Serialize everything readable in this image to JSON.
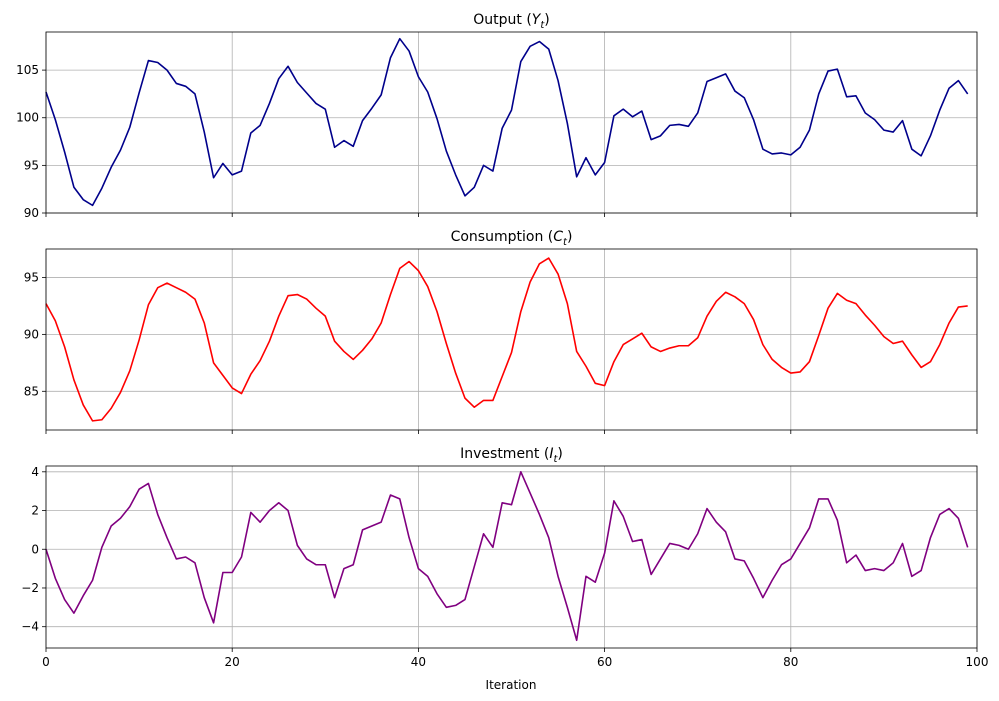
{
  "figure": {
    "xlabel": "Iteration"
  },
  "chart_data": [
    {
      "type": "line",
      "title_main": "Output (",
      "title_var": "Y",
      "title_sub": "t",
      "title_close": ")",
      "color": "#00008b",
      "xlim": [
        0,
        100
      ],
      "ylim": [
        90,
        109
      ],
      "yticks": [
        90,
        95,
        100,
        105
      ],
      "xticks": [
        0,
        20,
        40,
        60,
        80,
        100
      ],
      "show_xtick_labels": false,
      "grid": true,
      "x_start": 0,
      "values": [
        102.7,
        99.8,
        96.4,
        92.7,
        91.4,
        90.8,
        92.6,
        94.8,
        96.6,
        99.0,
        102.6,
        106.0,
        105.8,
        105.0,
        103.6,
        103.3,
        102.5,
        98.5,
        93.7,
        95.2,
        94.0,
        94.4,
        98.4,
        99.2,
        101.5,
        104.1,
        105.4,
        103.7,
        102.6,
        101.5,
        100.9,
        96.9,
        97.6,
        97.0,
        99.7,
        101.0,
        102.4,
        106.3,
        108.3,
        107.0,
        104.3,
        102.7,
        99.9,
        96.5,
        94.0,
        91.8,
        92.7,
        95.0,
        94.4,
        98.9,
        100.8,
        105.9,
        107.5,
        108.0,
        107.2,
        103.9,
        99.4,
        93.8,
        95.8,
        94.0,
        95.3,
        100.2,
        100.9,
        100.1,
        100.7,
        97.7,
        98.1,
        99.2,
        99.3,
        99.1,
        100.5,
        103.8,
        104.2,
        104.6,
        102.8,
        102.1,
        99.8,
        96.7,
        96.2,
        96.3,
        96.1,
        96.9,
        98.7,
        102.5,
        104.9,
        105.1,
        102.2,
        102.3,
        100.5,
        99.8,
        98.7,
        98.5,
        99.7,
        96.7,
        96.0,
        98.1,
        100.8,
        103.1,
        103.9,
        102.5
      ]
    },
    {
      "type": "line",
      "title_main": "Consumption (",
      "title_var": "C",
      "title_sub": "t",
      "title_close": ")",
      "color": "#ff0000",
      "xlim": [
        0,
        100
      ],
      "ylim": [
        81.6,
        97.5
      ],
      "yticks": [
        85,
        90,
        95
      ],
      "xticks": [
        0,
        20,
        40,
        60,
        80,
        100
      ],
      "show_xtick_labels": false,
      "grid": true,
      "x_start": 0,
      "values": [
        92.7,
        91.2,
        88.9,
        86.0,
        83.8,
        82.4,
        82.5,
        83.5,
        84.9,
        86.8,
        89.5,
        92.6,
        94.1,
        94.5,
        94.1,
        93.7,
        93.1,
        91.0,
        87.5,
        86.4,
        85.3,
        84.8,
        86.5,
        87.7,
        89.4,
        91.6,
        93.4,
        93.5,
        93.1,
        92.3,
        91.6,
        89.4,
        88.5,
        87.8,
        88.6,
        89.6,
        91.0,
        93.5,
        95.8,
        96.4,
        95.6,
        94.2,
        92.0,
        89.2,
        86.6,
        84.4,
        83.6,
        84.2,
        84.2,
        86.3,
        88.4,
        92.0,
        94.6,
        96.2,
        96.7,
        95.3,
        92.7,
        88.5,
        87.2,
        85.7,
        85.5,
        87.6,
        89.1,
        89.6,
        90.1,
        88.9,
        88.5,
        88.8,
        89.0,
        89.0,
        89.7,
        91.6,
        92.9,
        93.7,
        93.3,
        92.7,
        91.3,
        89.1,
        87.8,
        87.1,
        86.6,
        86.7,
        87.6,
        89.9,
        92.3,
        93.6,
        93.0,
        92.7,
        91.7,
        90.8,
        89.8,
        89.2,
        89.4,
        88.2,
        87.1,
        87.6,
        89.1,
        91.0,
        92.4,
        92.5
      ]
    },
    {
      "type": "line",
      "title_main": "Investment (",
      "title_var": "I",
      "title_sub": "t",
      "title_close": ")",
      "color": "#800080",
      "xlim": [
        0,
        100
      ],
      "ylim": [
        -5.1,
        4.3
      ],
      "yticks": [
        -4,
        -2,
        0,
        2,
        4
      ],
      "xticks": [
        0,
        20,
        40,
        60,
        80,
        100
      ],
      "show_xtick_labels": true,
      "grid": true,
      "x_start": 0,
      "values": [
        0.0,
        -1.5,
        -2.6,
        -3.3,
        -2.4,
        -1.6,
        0.1,
        1.2,
        1.6,
        2.2,
        3.1,
        3.4,
        1.8,
        0.6,
        -0.5,
        -0.4,
        -0.7,
        -2.5,
        -3.8,
        -1.2,
        -1.2,
        -0.4,
        1.9,
        1.4,
        2.0,
        2.4,
        2.0,
        0.2,
        -0.5,
        -0.8,
        -0.8,
        -2.5,
        -1.0,
        -0.8,
        1.0,
        1.2,
        1.4,
        2.8,
        2.6,
        0.6,
        -1.0,
        -1.4,
        -2.3,
        -3.0,
        -2.9,
        -2.6,
        -0.9,
        0.8,
        0.1,
        2.4,
        2.3,
        4.0,
        2.9,
        1.8,
        0.6,
        -1.4,
        -3.0,
        -4.7,
        -1.4,
        -1.7,
        -0.2,
        2.5,
        1.7,
        0.4,
        0.5,
        -1.3,
        -0.5,
        0.3,
        0.2,
        0.0,
        0.8,
        2.1,
        1.4,
        0.9,
        -0.5,
        -0.6,
        -1.5,
        -2.5,
        -1.6,
        -0.8,
        -0.5,
        0.3,
        1.1,
        2.6,
        2.6,
        1.5,
        -0.7,
        -0.3,
        -1.1,
        -1.0,
        -1.1,
        -0.7,
        0.3,
        -1.4,
        -1.1,
        0.6,
        1.8,
        2.1,
        1.6,
        0.1
      ]
    }
  ]
}
